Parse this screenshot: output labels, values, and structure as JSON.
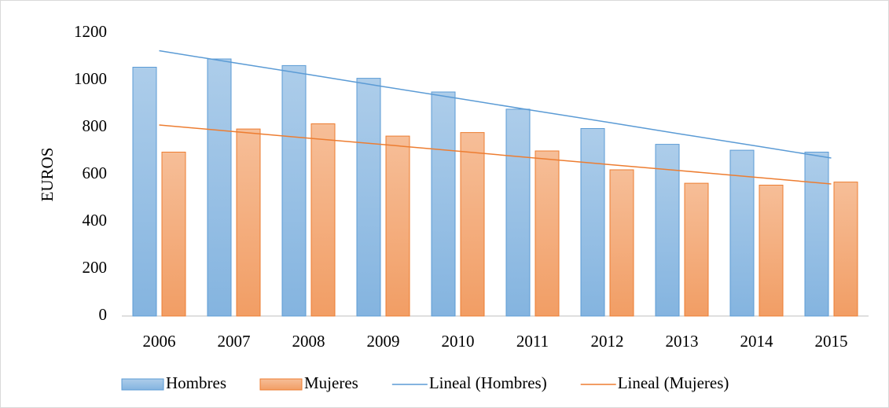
{
  "chart_data": {
    "type": "bar",
    "y_label": "EUROS",
    "categories": [
      "2006",
      "2007",
      "2008",
      "2009",
      "2010",
      "2011",
      "2012",
      "2013",
      "2014",
      "2015"
    ],
    "series": [
      {
        "name": "Hombres",
        "color": "#5b9bd5",
        "values": [
          1055,
          1090,
          1062,
          1008,
          950,
          877,
          795,
          728,
          703,
          695
        ]
      },
      {
        "name": "Mujeres",
        "color": "#ed7d31",
        "values": [
          695,
          793,
          815,
          763,
          778,
          700,
          620,
          563,
          555,
          568
        ]
      },
      {
        "name": "Lineal (Hombres)",
        "type": "line",
        "color": "#5b9bd5",
        "values": [
          1125,
          1074,
          1024,
          973,
          923,
          872,
          822,
          771,
          721,
          670
        ]
      },
      {
        "name": "Lineal (Mujeres)",
        "type": "line",
        "color": "#ed7d31",
        "values": [
          810,
          782,
          754,
          727,
          699,
          671,
          643,
          616,
          588,
          560
        ]
      }
    ],
    "ylim": [
      0,
      1200
    ],
    "yticks": [
      0,
      200,
      400,
      600,
      800,
      1000,
      1200
    ],
    "grid": false,
    "legend": "bottom"
  }
}
